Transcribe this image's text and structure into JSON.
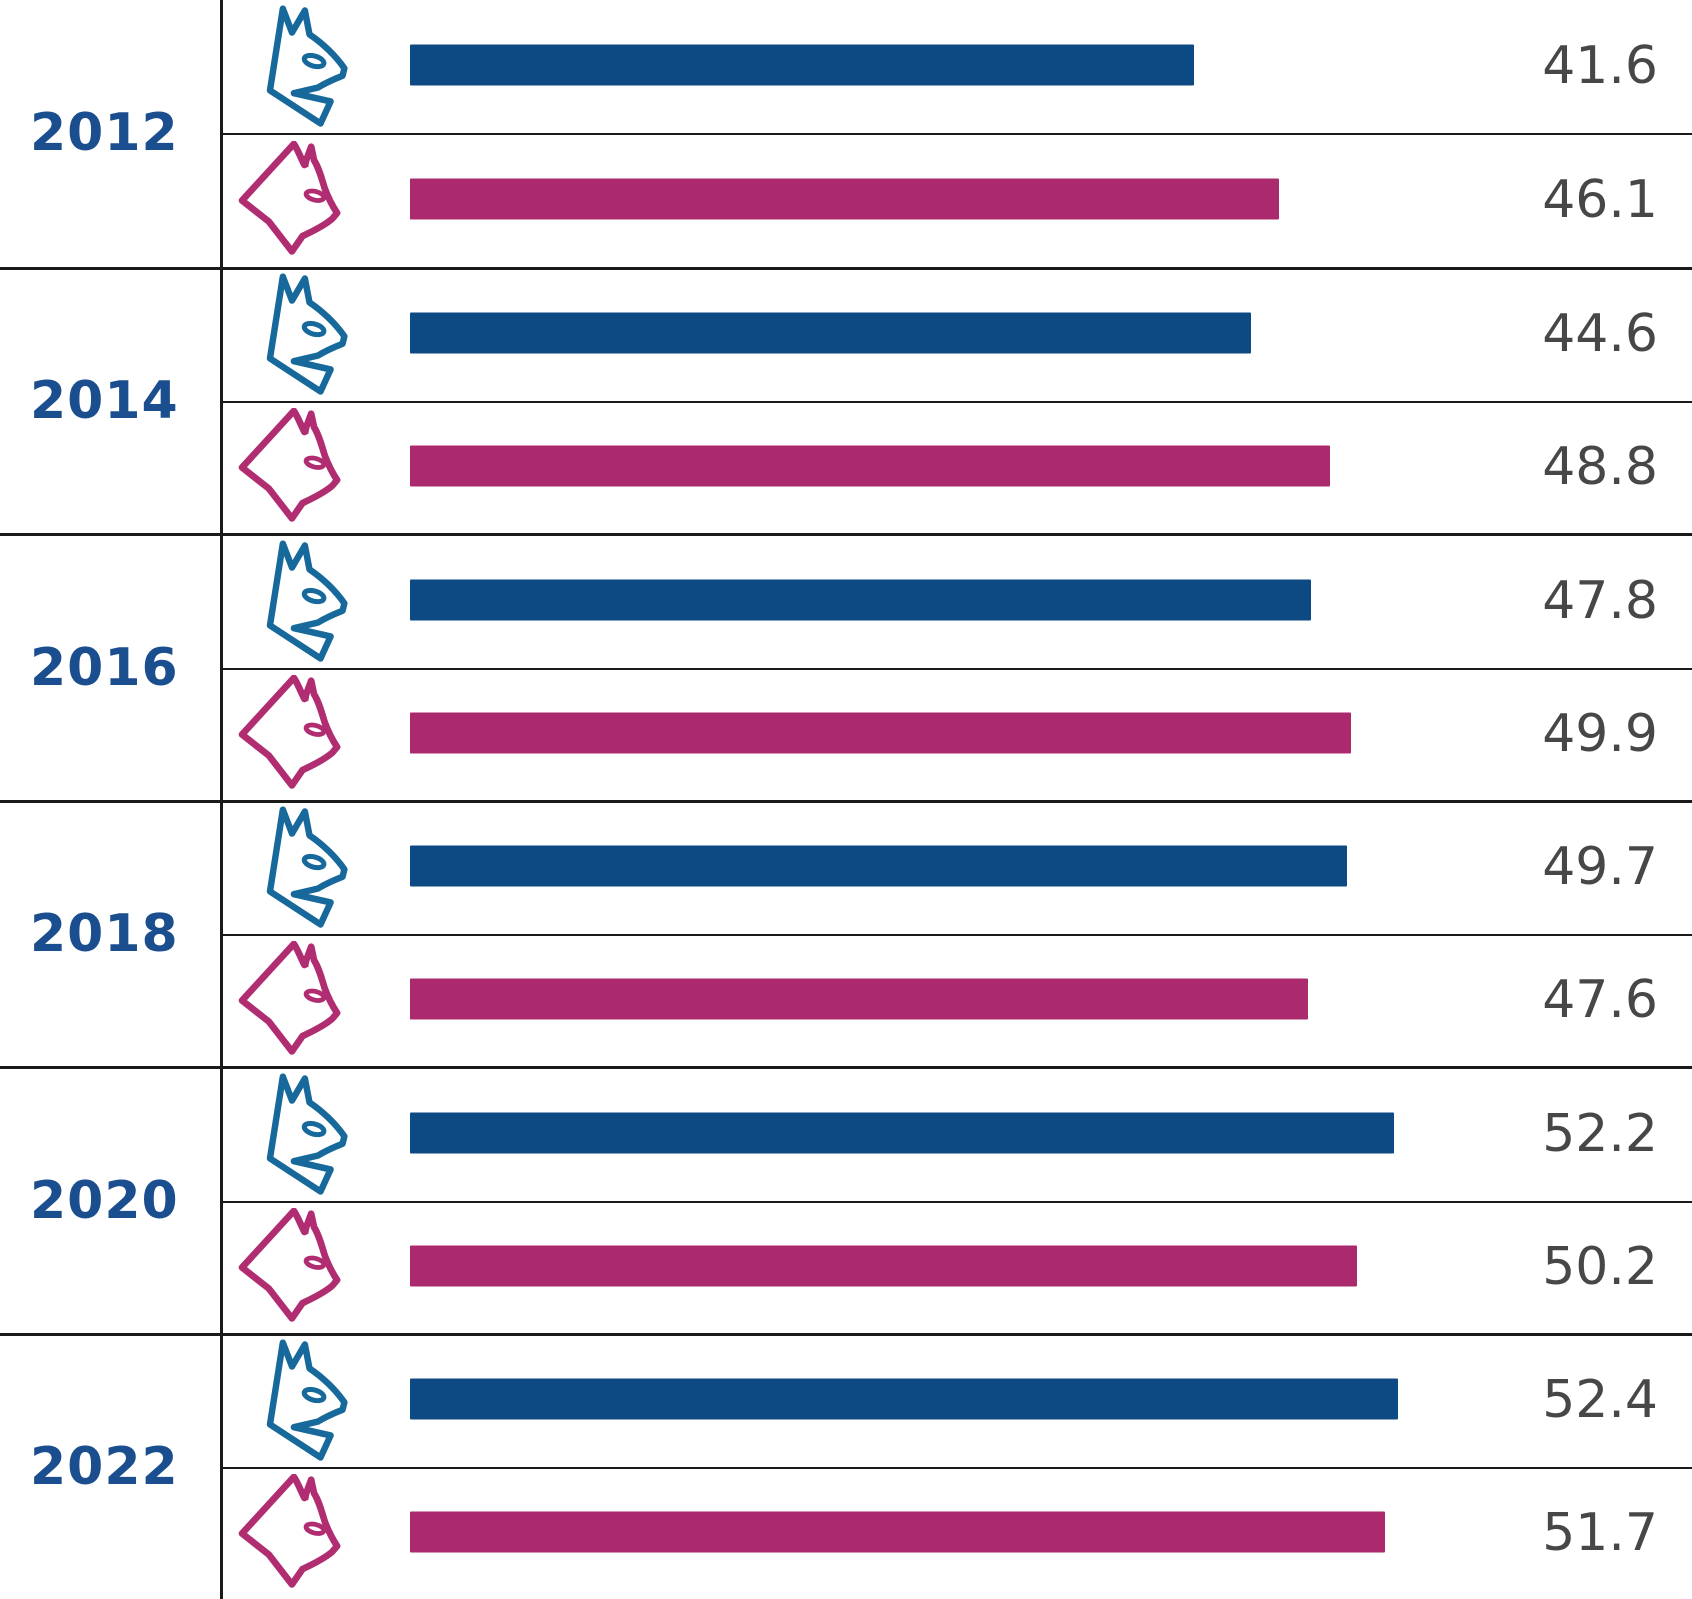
{
  "chart_data": {
    "type": "bar",
    "orientation": "horizontal",
    "title": "",
    "xlabel": "",
    "ylabel": "",
    "categories": [
      "2012",
      "2014",
      "2016",
      "2018",
      "2020",
      "2022"
    ],
    "series": [
      {
        "name": "dogs",
        "icon": "dog-icon",
        "color": "#0d4a84",
        "values": [
          41.6,
          44.6,
          47.8,
          49.7,
          52.2,
          52.4
        ]
      },
      {
        "name": "cats",
        "icon": "cat-icon",
        "color": "#ab2a6d",
        "values": [
          46.1,
          48.8,
          49.9,
          47.6,
          50.2,
          51.7
        ]
      }
    ],
    "xlim": [
      0,
      56
    ],
    "grid": false,
    "value_labels": true,
    "legend_position": "none (dog and cat pictogram icons label each row)"
  },
  "blocks": [
    {
      "year": "2012",
      "dog_value": "41.6",
      "cat_value": "46.1"
    },
    {
      "year": "2014",
      "dog_value": "44.6",
      "cat_value": "48.8"
    },
    {
      "year": "2016",
      "dog_value": "47.8",
      "cat_value": "49.9"
    },
    {
      "year": "2018",
      "dog_value": "49.7",
      "cat_value": "47.6"
    },
    {
      "year": "2020",
      "dog_value": "52.2",
      "cat_value": "50.2"
    },
    {
      "year": "2022",
      "dog_value": "52.4",
      "cat_value": "51.7"
    }
  ],
  "colors": {
    "dog_bar": "#0d4a84",
    "cat_bar": "#ab2a6d",
    "dog_icon": "#17689b",
    "cat_icon": "#b12d72",
    "year_label": "#1b4e8e",
    "value_label": "#474747",
    "line": "#1a1a1a"
  }
}
